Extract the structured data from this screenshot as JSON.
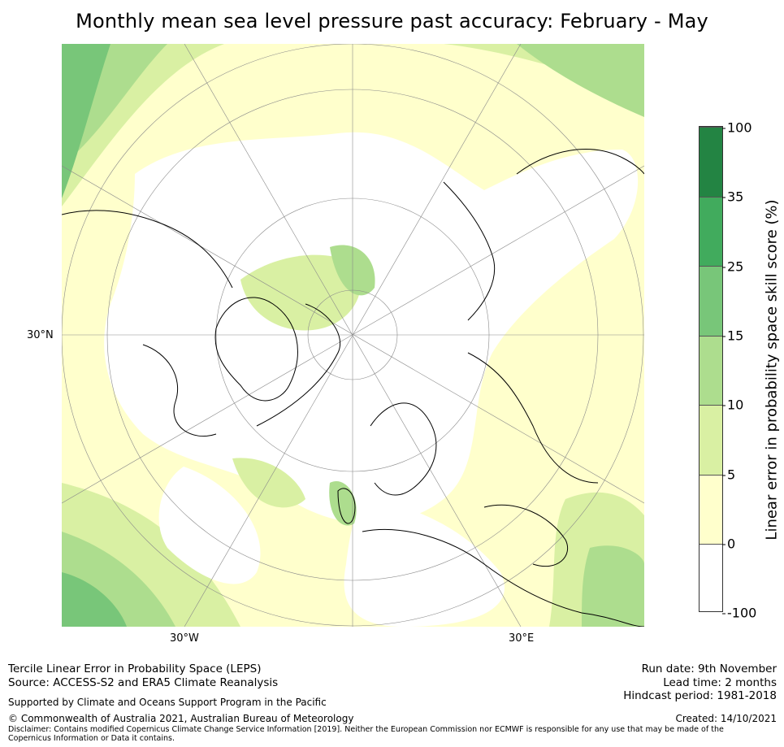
{
  "title": "Monthly mean sea level pressure past accuracy: February - May",
  "map": {
    "projection": "North polar stereographic",
    "graticule_labels": {
      "left": "30°N",
      "bottom_left": "30°W",
      "bottom_right": "30°E"
    }
  },
  "colorbar": {
    "label": "Linear error in probability space skill score (%)",
    "ticks": [
      "100",
      "35",
      "25",
      "15",
      "10",
      "5",
      "0",
      "-100"
    ],
    "bins": [
      {
        "from": -100,
        "to": 0,
        "color": "#ffffff"
      },
      {
        "from": 0,
        "to": 5,
        "color": "#ffffcc"
      },
      {
        "from": 5,
        "to": 10,
        "color": "#d9f0a3"
      },
      {
        "from": 10,
        "to": 15,
        "color": "#addd8e"
      },
      {
        "from": 15,
        "to": 25,
        "color": "#78c679"
      },
      {
        "from": 25,
        "to": 35,
        "color": "#41ab5d"
      },
      {
        "from": 35,
        "to": 100,
        "color": "#238443"
      }
    ]
  },
  "footer": {
    "method": "Tercile Linear Error in Probability Space (LEPS)",
    "source": "Source: ACCESS-S2 and ERA5 Climate Reanalysis",
    "support": "Supported by Climate and Oceans Support Program in the Pacific",
    "copyright": "© Commonwealth of Australia 2021, Australian Bureau of Meteorology",
    "disclaimer": "Disclaimer: Contains modified Copernicus Climate Change Service Information [2019]. Neither the European Commission nor ECMWF is responsible for any use that may be made of the Copernicus Information or Data it contains.",
    "run_date": "Run date: 9th November",
    "lead_time": "Lead time: 2 months",
    "hindcast": "Hindcast period: 1981-2018",
    "created": "Created: 14/10/2021"
  }
}
